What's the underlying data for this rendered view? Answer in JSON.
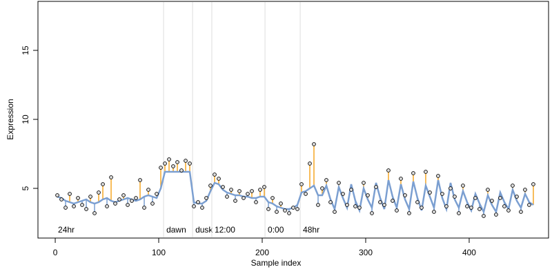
{
  "chart_data": {
    "type": "scatter",
    "xlabel": "Sample index",
    "ylabel": "Expression",
    "xlim": [
      -16.7,
      476.7
    ],
    "ylim": [
      1.4,
      18.55
    ],
    "xticks": [
      0,
      100,
      200,
      300,
      400
    ],
    "yticks": [
      5,
      10,
      15
    ],
    "point_color": "#dddddd",
    "fit_color": "#7b9fd1",
    "above_color": "#f5a623",
    "below_color": "#7b9fd1",
    "markers": [
      {
        "label": "24hr",
        "x": 0,
        "line": false
      },
      {
        "label": "dawn",
        "x": 104.7,
        "line": true
      },
      {
        "label": "dusk",
        "x": 132.7,
        "line": true
      },
      {
        "label": "12:00",
        "x": 151.3,
        "line": true
      },
      {
        "label": "0:00",
        "x": 202.7,
        "line": true
      },
      {
        "label": "48hr",
        "x": 236.7,
        "line": true
      }
    ],
    "x": [
      2,
      6,
      10,
      14,
      18,
      22,
      26,
      30,
      34,
      38,
      42,
      46,
      50,
      54,
      58,
      62,
      66,
      70,
      74,
      78,
      82,
      86,
      90,
      94,
      98,
      102,
      106,
      110,
      114,
      118,
      122,
      126,
      130,
      134,
      138,
      142,
      146,
      150,
      154,
      158,
      162,
      166,
      170,
      174,
      178,
      182,
      186,
      190,
      194,
      198,
      202,
      206,
      210,
      214,
      218,
      222,
      226,
      230,
      234,
      238,
      242,
      246,
      250,
      254,
      258,
      262,
      266,
      270,
      274,
      278,
      282,
      286,
      290,
      294,
      298,
      302,
      306,
      310,
      314,
      318,
      322,
      326,
      330,
      334,
      338,
      342,
      346,
      350,
      354,
      358,
      362,
      366,
      370,
      374,
      378,
      382,
      386,
      390,
      394,
      398,
      402,
      406,
      410,
      414,
      418,
      422,
      426,
      430,
      434,
      438,
      442,
      446,
      450,
      454,
      458,
      462
    ],
    "values": [
      4.5,
      4.2,
      3.6,
      4.6,
      3.7,
      4.3,
      3.8,
      3.5,
      4.4,
      3.2,
      4.7,
      5.3,
      3.7,
      5.8,
      3.9,
      4.2,
      4.5,
      3.8,
      4.1,
      4.3,
      5.6,
      3.6,
      4.9,
      3.9,
      4.6,
      6.5,
      6.8,
      7.1,
      6.6,
      6.9,
      6.3,
      7.0,
      6.8,
      3.7,
      4.0,
      3.6,
      4.3,
      5.2,
      6.0,
      5.7,
      5.1,
      4.4,
      4.9,
      4.1,
      4.8,
      4.3,
      4.6,
      4.8,
      4.0,
      4.9,
      5.1,
      3.5,
      4.3,
      3.3,
      3.9,
      3.4,
      3.2,
      3.6,
      3.5,
      5.3,
      4.6,
      6.8,
      8.2,
      3.8,
      5.0,
      5.6,
      4.0,
      3.3,
      5.4,
      4.6,
      3.8,
      4.9,
      3.7,
      3.6,
      5.4,
      4.5,
      3.2,
      5.1,
      4.0,
      3.8,
      6.3,
      4.1,
      3.4,
      5.7,
      4.5,
      3.2,
      6.1,
      4.0,
      3.6,
      6.2,
      4.7,
      3.3,
      5.9,
      4.6,
      3.7,
      5.0,
      4.4,
      3.2,
      5.2,
      3.7,
      3.6,
      4.3,
      3.5,
      3.0,
      4.9,
      4.1,
      3.1,
      4.3,
      3.7,
      3.4,
      5.2,
      4.4,
      3.3,
      4.9,
      3.8,
      5.3
    ],
    "fitted": [
      4.4,
      4.3,
      4.1,
      4.0,
      3.9,
      4.0,
      4.1,
      4.2,
      4.0,
      3.9,
      4.0,
      4.2,
      4.3,
      4.1,
      4.0,
      4.1,
      4.2,
      4.3,
      4.2,
      4.1,
      4.2,
      4.4,
      4.5,
      4.4,
      4.3,
      5.0,
      6.2,
      6.2,
      6.2,
      6.2,
      6.2,
      6.2,
      6.2,
      4.0,
      3.9,
      3.9,
      4.1,
      4.8,
      5.4,
      5.3,
      4.9,
      4.7,
      4.6,
      4.5,
      4.5,
      4.4,
      4.4,
      4.3,
      4.3,
      4.4,
      4.4,
      4.0,
      3.9,
      3.7,
      3.6,
      3.5,
      3.5,
      3.6,
      3.8,
      4.7,
      4.8,
      5.0,
      5.2,
      4.5,
      4.5,
      5.2,
      4.2,
      3.5,
      5.1,
      4.3,
      3.6,
      5.3,
      4.1,
      3.4,
      5.0,
      4.2,
      3.6,
      5.4,
      4.3,
      3.5,
      5.6,
      4.4,
      3.6,
      5.3,
      4.2,
      3.5,
      5.5,
      4.3,
      3.4,
      5.2,
      4.4,
      3.6,
      5.6,
      4.3,
      3.5,
      5.4,
      4.2,
      3.6,
      4.8,
      4.0,
      3.4,
      4.6,
      3.9,
      3.3,
      4.5,
      3.8,
      3.3,
      4.7,
      4.0,
      3.5,
      4.9,
      4.1,
      3.6,
      4.6,
      4.0,
      3.8
    ]
  }
}
